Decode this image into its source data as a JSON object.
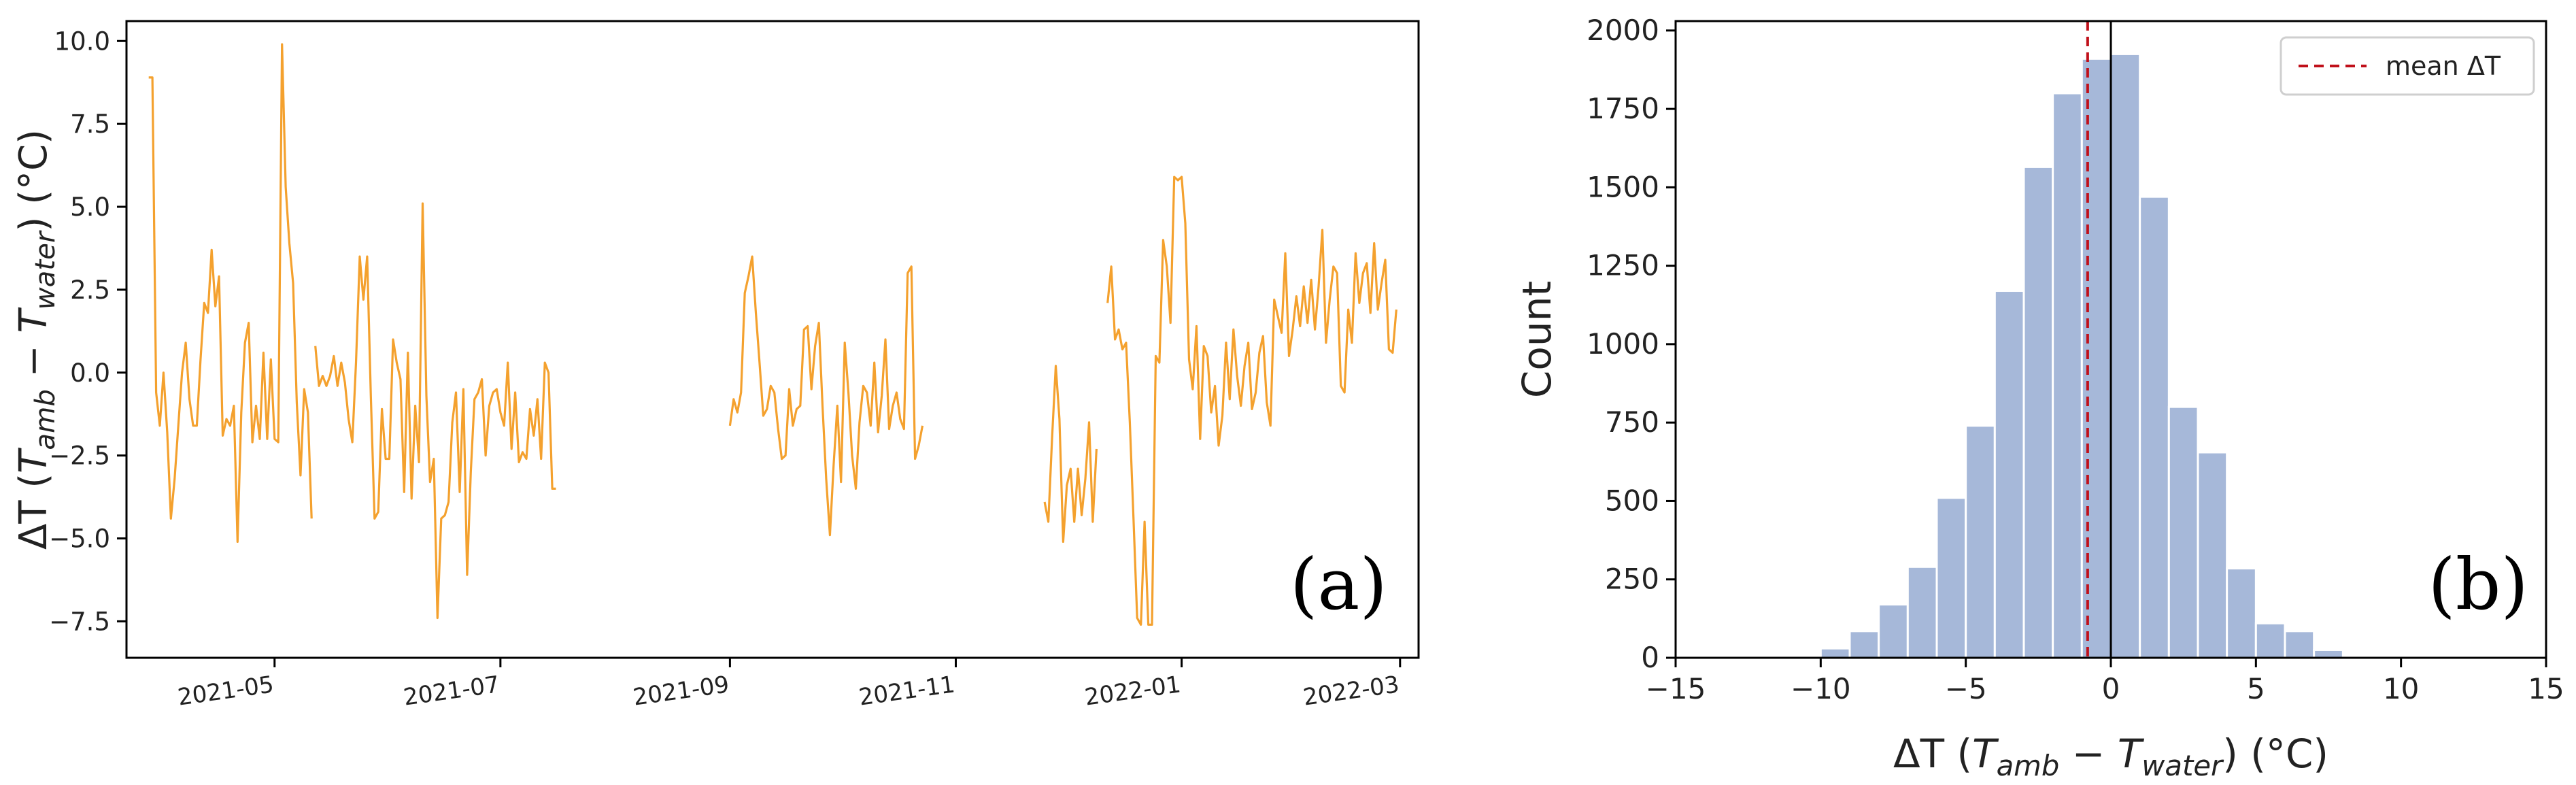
{
  "chart_data": [
    {
      "type": "line",
      "panel_tag": "(a)",
      "ylabel_parts": [
        "ΔT (",
        "T",
        "amb",
        " − ",
        "T",
        "water",
        ") (°C)"
      ],
      "ylim": [
        -8.6,
        10.6
      ],
      "yticks": [
        -7.5,
        -5.0,
        -2.5,
        0.0,
        2.5,
        5.0,
        7.5,
        10.0
      ],
      "ytick_labels": [
        "−7.5",
        "−5.0",
        "−2.5",
        "0.0",
        "2.5",
        "5.0",
        "7.5",
        "10.0"
      ],
      "xlim": [
        "2021-03-22",
        "2022-03-06"
      ],
      "xticks": [
        "2021-05-01",
        "2021-07-01",
        "2021-09-01",
        "2021-11-01",
        "2022-01-01",
        "2022-03-01"
      ],
      "xtick_labels": [
        "2021-05",
        "2021-07",
        "2021-09",
        "2021-11",
        "2022-01",
        "2022-03"
      ],
      "grid": false,
      "color": "#f4a12e",
      "segments": [
        {
          "x": [
            "2021-03-28",
            "2021-03-29",
            "2021-03-30",
            "2021-03-31",
            "2021-04-01",
            "2021-04-02",
            "2021-04-03",
            "2021-04-04",
            "2021-04-05",
            "2021-04-06",
            "2021-04-07",
            "2021-04-08",
            "2021-04-09",
            "2021-04-10",
            "2021-04-11",
            "2021-04-12",
            "2021-04-13",
            "2021-04-14",
            "2021-04-15",
            "2021-04-16",
            "2021-04-17",
            "2021-04-18",
            "2021-04-19",
            "2021-04-20",
            "2021-04-21",
            "2021-04-22",
            "2021-04-23",
            "2021-04-24",
            "2021-04-25",
            "2021-04-26",
            "2021-04-27",
            "2021-04-28",
            "2021-04-29",
            "2021-04-30",
            "2021-05-01",
            "2021-05-02",
            "2021-05-03",
            "2021-05-04",
            "2021-05-05",
            "2021-05-06",
            "2021-05-07",
            "2021-05-08",
            "2021-05-09",
            "2021-05-10",
            "2021-05-11",
            "2021-05-12",
            "2021-05-13",
            "2021-05-14",
            "2021-05-15",
            "2021-05-16",
            "2021-05-17",
            "2021-05-18"
          ],
          "y": [
            8.9,
            8.9,
            -0.6,
            -1.6,
            0.0,
            -1.8,
            -4.4,
            -3.2,
            -1.6,
            0.0,
            0.9,
            -0.8,
            -1.6,
            -1.6,
            0.4,
            2.1,
            1.8,
            3.7,
            2.0,
            2.9,
            -1.9,
            -1.4,
            -1.6,
            -1.0,
            -5.1,
            -1.2,
            0.9,
            1.5,
            -2.1,
            -1.0,
            -2.0,
            0.6,
            -2.0,
            0.4,
            -2.0,
            -2.1,
            9.9,
            5.6,
            3.9,
            2.7,
            -0.9,
            -3.1,
            -0.5,
            -1.2,
            -4.4,
            null,
            null,
            null,
            null,
            null,
            null,
            null
          ]
        },
        {
          "x": [
            "2021-05-12",
            "2021-05-13",
            "2021-05-14",
            "2021-05-15",
            "2021-05-16",
            "2021-05-17",
            "2021-05-18",
            "2021-05-19",
            "2021-05-20",
            "2021-05-21",
            "2021-05-22",
            "2021-05-23",
            "2021-05-24",
            "2021-05-25",
            "2021-05-26",
            "2021-05-27",
            "2021-05-28",
            "2021-05-29",
            "2021-05-30",
            "2021-05-31",
            "2021-06-01",
            "2021-06-02",
            "2021-06-03",
            "2021-06-04",
            "2021-06-05",
            "2021-06-06",
            "2021-06-07",
            "2021-06-08",
            "2021-06-09",
            "2021-06-10",
            "2021-06-11",
            "2021-06-12",
            "2021-06-13",
            "2021-06-14",
            "2021-06-15",
            "2021-06-16",
            "2021-06-17",
            "2021-06-18",
            "2021-06-19",
            "2021-06-20",
            "2021-06-21",
            "2021-06-22",
            "2021-06-23",
            "2021-06-24",
            "2021-06-25",
            "2021-06-26",
            "2021-06-27",
            "2021-06-28",
            "2021-06-29",
            "2021-06-30",
            "2021-07-01",
            "2021-07-02",
            "2021-07-03",
            "2021-07-04",
            "2021-07-05",
            "2021-07-06",
            "2021-07-07",
            "2021-07-08",
            "2021-07-09",
            "2021-07-10",
            "2021-07-11",
            "2021-07-12",
            "2021-07-13",
            "2021-07-14",
            "2021-07-15",
            "2021-07-16"
          ],
          "y": [
            0.8,
            -0.4,
            -0.1,
            -0.4,
            -0.1,
            0.5,
            -0.4,
            0.3,
            -0.3,
            -1.4,
            -2.1,
            0.3,
            3.5,
            2.2,
            3.5,
            -0.7,
            -4.4,
            -4.2,
            -1.1,
            -2.6,
            -2.6,
            1.0,
            0.3,
            -0.2,
            -3.6,
            0.6,
            -3.8,
            -1.0,
            -2.7,
            5.1,
            -0.7,
            -3.3,
            -2.6,
            -7.4,
            -4.4,
            -4.3,
            -3.9,
            -1.5,
            -0.6,
            -3.6,
            -0.5,
            -6.1,
            -3.0,
            -0.8,
            -0.6,
            -0.2,
            -2.5,
            -1.0,
            -0.6,
            -0.5,
            -1.2,
            -1.6,
            0.3,
            -2.3,
            -0.6,
            -2.7,
            -2.4,
            -2.6,
            -1.1,
            -1.9,
            -0.8,
            -2.6,
            0.3,
            0.0,
            -3.5,
            -3.5
          ]
        },
        {
          "x": [
            "2021-09-01",
            "2021-09-02",
            "2021-09-03",
            "2021-09-04",
            "2021-09-05",
            "2021-09-06",
            "2021-09-07",
            "2021-09-08",
            "2021-09-09",
            "2021-09-10",
            "2021-09-11",
            "2021-09-12",
            "2021-09-13",
            "2021-09-14",
            "2021-09-15",
            "2021-09-16",
            "2021-09-17",
            "2021-09-18",
            "2021-09-19",
            "2021-09-20",
            "2021-09-21",
            "2021-09-22",
            "2021-09-23",
            "2021-09-24",
            "2021-09-25",
            "2021-09-26",
            "2021-09-27",
            "2021-09-28",
            "2021-09-29",
            "2021-09-30",
            "2021-10-01",
            "2021-10-02",
            "2021-10-03",
            "2021-10-04",
            "2021-10-05",
            "2021-10-06",
            "2021-10-07",
            "2021-10-08",
            "2021-10-09",
            "2021-10-10",
            "2021-10-11",
            "2021-10-12",
            "2021-10-13",
            "2021-10-14",
            "2021-10-15",
            "2021-10-16",
            "2021-10-17",
            "2021-10-18",
            "2021-10-19",
            "2021-10-20",
            "2021-10-21",
            "2021-10-22",
            "2021-10-23"
          ],
          "y": [
            -1.6,
            -0.8,
            -1.2,
            -0.6,
            2.4,
            2.9,
            3.5,
            1.8,
            0.3,
            -1.3,
            -1.1,
            -0.4,
            -0.6,
            -1.7,
            -2.6,
            -2.5,
            -0.5,
            -1.6,
            -1.1,
            -1.0,
            1.3,
            1.4,
            -0.5,
            0.8,
            1.5,
            -1.0,
            -3.2,
            -4.9,
            -2.8,
            -1.0,
            -3.3,
            0.9,
            -0.6,
            -2.5,
            -3.5,
            -1.5,
            -0.4,
            -0.6,
            -1.6,
            0.3,
            -1.8,
            -0.7,
            1.0,
            -1.7,
            -1.0,
            -0.6,
            -1.4,
            -1.7,
            3.0,
            3.2,
            -2.6,
            -2.2,
            -1.6
          ]
        },
        {
          "x": [
            "2021-11-25",
            "2021-11-26",
            "2021-11-27",
            "2021-11-28",
            "2021-11-29",
            "2021-11-30",
            "2021-12-01",
            "2021-12-02",
            "2021-12-03",
            "2021-12-04",
            "2021-12-05",
            "2021-12-06",
            "2021-12-07",
            "2021-12-08",
            "2021-12-09"
          ],
          "y": [
            -3.9,
            -4.5,
            -2.0,
            0.2,
            -1.4,
            -5.1,
            -3.4,
            -2.9,
            -4.5,
            -2.9,
            -4.3,
            -3.2,
            -1.5,
            -4.5,
            -2.3
          ]
        },
        {
          "x": [
            "2021-12-12",
            "2021-12-13",
            "2021-12-14",
            "2021-12-15",
            "2021-12-16",
            "2021-12-17",
            "2021-12-18",
            "2021-12-19",
            "2021-12-20",
            "2021-12-21",
            "2021-12-22",
            "2021-12-23",
            "2021-12-24",
            "2021-12-25",
            "2021-12-26",
            "2021-12-27",
            "2021-12-28",
            "2021-12-29",
            "2021-12-30",
            "2021-12-31",
            "2022-01-01",
            "2022-01-02",
            "2022-01-03",
            "2022-01-04",
            "2022-01-05",
            "2022-01-06",
            "2022-01-07",
            "2022-01-08",
            "2022-01-09",
            "2022-01-10",
            "2022-01-11",
            "2022-01-12",
            "2022-01-13",
            "2022-01-14",
            "2022-01-15",
            "2022-01-16",
            "2022-01-17",
            "2022-01-18",
            "2022-01-19",
            "2022-01-20",
            "2022-01-21",
            "2022-01-22",
            "2022-01-23",
            "2022-01-24",
            "2022-01-25",
            "2022-01-26",
            "2022-01-27",
            "2022-01-28",
            "2022-01-29",
            "2022-01-30",
            "2022-01-31",
            "2022-02-01",
            "2022-02-02",
            "2022-02-03",
            "2022-02-04",
            "2022-02-05",
            "2022-02-06",
            "2022-02-07",
            "2022-02-08",
            "2022-02-09",
            "2022-02-10",
            "2022-02-11",
            "2022-02-12",
            "2022-02-13",
            "2022-02-14",
            "2022-02-15",
            "2022-02-16",
            "2022-02-17",
            "2022-02-18",
            "2022-02-19",
            "2022-02-20",
            "2022-02-21",
            "2022-02-22",
            "2022-02-23",
            "2022-02-24",
            "2022-02-25",
            "2022-02-26",
            "2022-02-27",
            "2022-02-28"
          ],
          "y": [
            2.1,
            3.2,
            1.0,
            1.3,
            0.7,
            0.9,
            -1.5,
            -4.4,
            -7.4,
            -7.6,
            -4.5,
            -7.6,
            -7.6,
            0.5,
            0.3,
            4.0,
            3.2,
            1.5,
            5.9,
            5.8,
            5.9,
            4.5,
            0.4,
            -0.5,
            1.4,
            -2.0,
            0.8,
            0.5,
            -1.2,
            -0.4,
            -2.2,
            -1.3,
            0.9,
            -0.8,
            1.3,
            -0.1,
            -1.0,
            0.2,
            0.9,
            -1.1,
            -0.6,
            0.6,
            1.1,
            -0.9,
            -1.6,
            2.2,
            1.7,
            1.2,
            3.6,
            0.5,
            1.3,
            2.3,
            1.4,
            2.6,
            1.5,
            2.8,
            1.3,
            2.6,
            4.3,
            0.9,
            2.2,
            3.2,
            3.0,
            -0.4,
            -0.6,
            1.9,
            0.9,
            3.6,
            2.1,
            3.0,
            3.3,
            1.8,
            3.9,
            1.9,
            2.7,
            3.4,
            0.7,
            0.6,
            1.9
          ]
        }
      ]
    },
    {
      "type": "bar",
      "subtype": "histogram",
      "panel_tag": "(b)",
      "ylabel": "Count",
      "xlabel_parts": [
        "ΔT (",
        "T",
        "amb",
        " − ",
        "T",
        "water",
        ") (°C)"
      ],
      "xlim": [
        -15,
        15
      ],
      "ylim": [
        0,
        2030
      ],
      "xticks": [
        -15,
        -10,
        -5,
        0,
        5,
        10,
        15
      ],
      "xtick_labels": [
        "−15",
        "−10",
        "−5",
        "0",
        "5",
        "10",
        "15"
      ],
      "yticks": [
        0,
        250,
        500,
        750,
        1000,
        1250,
        1500,
        1750,
        2000
      ],
      "ytick_labels": [
        "0",
        "250",
        "500",
        "750",
        "1000",
        "1250",
        "1500",
        "1750",
        "2000"
      ],
      "bar_color": "#a6b8d9",
      "bin_edges": [
        -10,
        -9,
        -8,
        -7,
        -6,
        -5,
        -4,
        -3,
        -2,
        -1,
        0,
        1,
        2,
        3,
        4,
        5,
        6,
        7,
        8
      ],
      "values": [
        30,
        85,
        170,
        290,
        510,
        740,
        1170,
        1565,
        1800,
        1910,
        1925,
        1470,
        800,
        655,
        285,
        110,
        85,
        25
      ],
      "extra_bins": [
        {
          "left": 12,
          "right": 13,
          "value": 5
        }
      ],
      "vline_zero_color": "#000000",
      "mean_value": -0.8,
      "mean_color": "#c0101a",
      "legend": {
        "label": "mean ΔT",
        "position": "top-right"
      },
      "grid": false
    }
  ]
}
